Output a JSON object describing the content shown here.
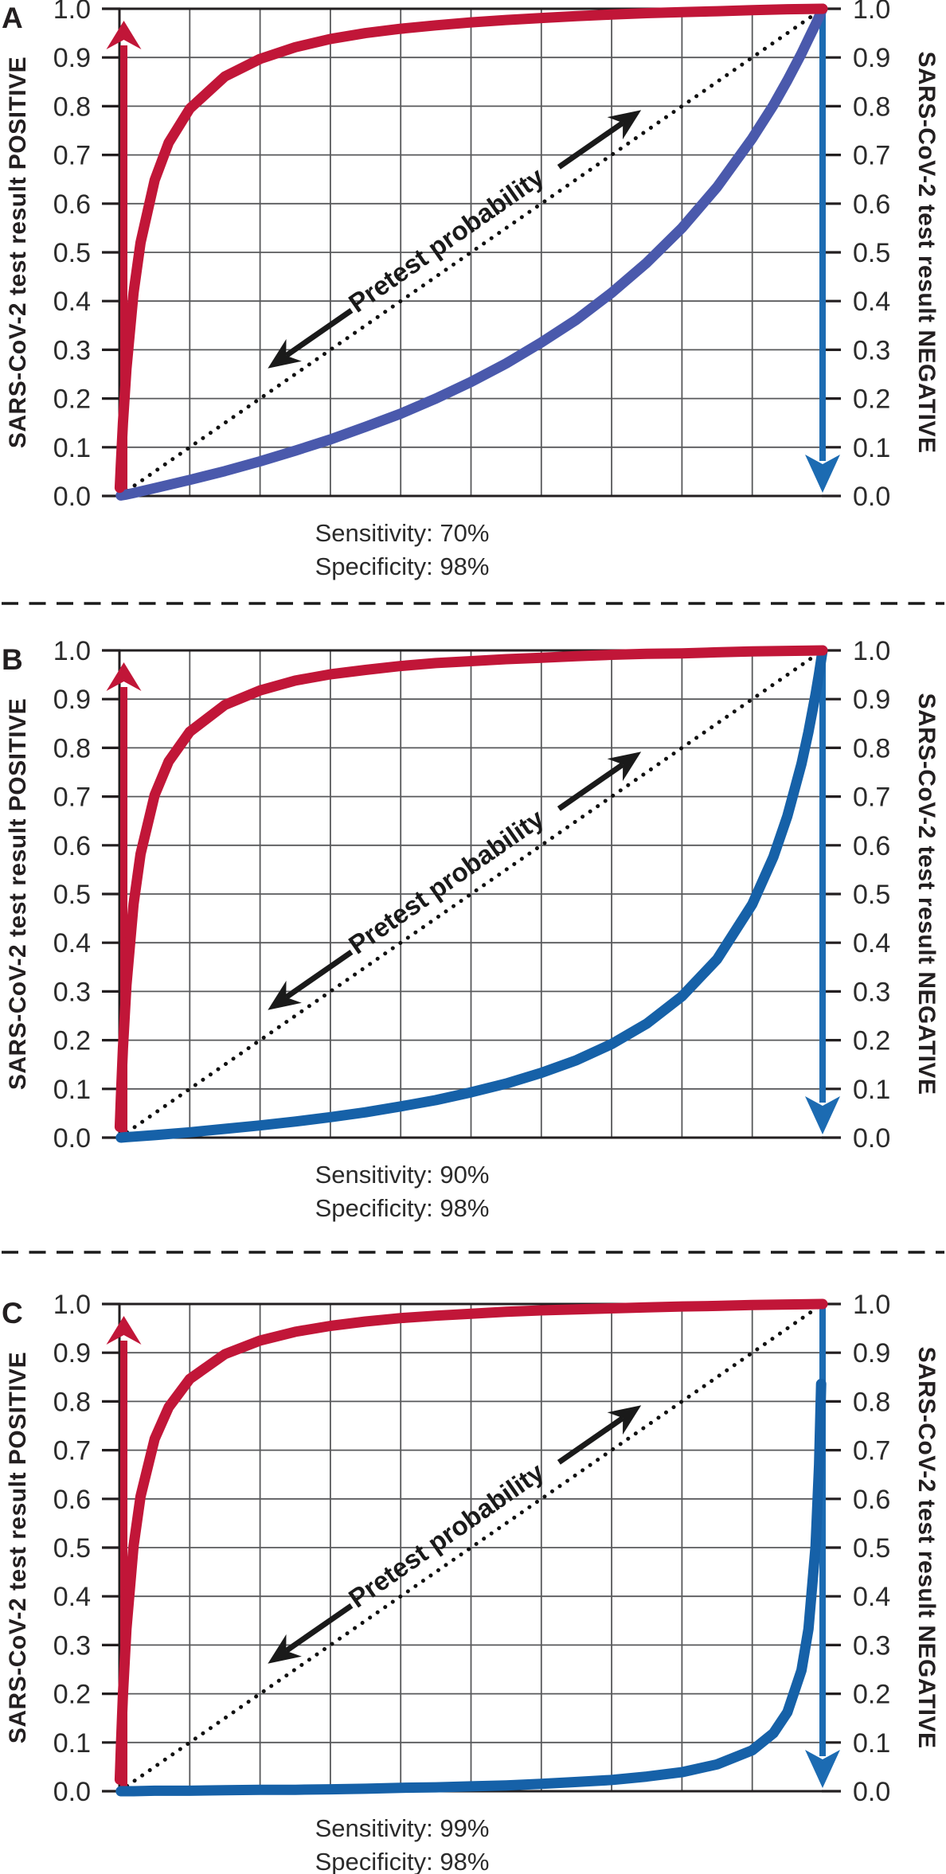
{
  "figure": {
    "background": "#ffffff",
    "tick_labels": [
      "0.0",
      "0.1",
      "0.2",
      "0.3",
      "0.4",
      "0.5",
      "0.6",
      "0.7",
      "0.8",
      "0.9",
      "1.0"
    ],
    "colors": {
      "positive_curve": "#c11638",
      "negative_curve_panel_a": "#4a59ac",
      "negative_curve": "#1661a8",
      "axis_arrow_up": "#c11638",
      "axis_arrow_down": "#1c6bb2",
      "grid": "#58595b",
      "frame": "#231f20",
      "text": "#231f20",
      "annotation": "#1a1a1a"
    }
  },
  "chart_data": [
    {
      "panel": "A",
      "type": "line",
      "ylim": [
        0,
        1
      ],
      "xlim": [
        0,
        1
      ],
      "grid": true,
      "left_axis_label": "SARS-CoV-2 test result POSITIVE",
      "right_axis_label": "SARS-CoV-2 test result NEGATIVE",
      "diagonal_label": "Pretest probability",
      "caption_lines": [
        "Sensitivity: 70%",
        "Specificity: 98%"
      ],
      "sensitivity": 0.7,
      "specificity": 0.98,
      "series": [
        {
          "id": "posttest-probability-if-test-positive",
          "color": "#c11638",
          "x": [
            0.0005,
            0.001,
            0.002,
            0.005,
            0.01,
            0.02,
            0.03,
            0.05,
            0.07,
            0.1,
            0.15,
            0.2,
            0.25,
            0.3,
            0.35,
            0.4,
            0.45,
            0.5,
            0.55,
            0.6,
            0.65,
            0.7,
            0.75,
            0.8,
            0.85,
            0.9,
            0.95,
            1.0
          ],
          "y": [
            0.017,
            0.034,
            0.066,
            0.15,
            0.261,
            0.417,
            0.52,
            0.648,
            0.725,
            0.795,
            0.861,
            0.897,
            0.921,
            0.938,
            0.95,
            0.959,
            0.966,
            0.972,
            0.977,
            0.981,
            0.985,
            0.988,
            0.991,
            0.993,
            0.995,
            0.997,
            0.999,
            1.0
          ]
        },
        {
          "id": "posttest-probability-if-test-negative",
          "color": "#4a59ac",
          "x": [
            0.002,
            0.01,
            0.02,
            0.05,
            0.1,
            0.15,
            0.2,
            0.25,
            0.3,
            0.35,
            0.4,
            0.45,
            0.5,
            0.55,
            0.6,
            0.65,
            0.7,
            0.75,
            0.8,
            0.85,
            0.9,
            0.93,
            0.95,
            0.97,
            0.98,
            0.99,
            0.995,
            1.0
          ],
          "y": [
            0.001,
            0.003,
            0.006,
            0.016,
            0.033,
            0.051,
            0.071,
            0.093,
            0.116,
            0.142,
            0.169,
            0.2,
            0.234,
            0.272,
            0.315,
            0.362,
            0.417,
            0.479,
            0.55,
            0.634,
            0.734,
            0.802,
            0.853,
            0.908,
            0.938,
            0.968,
            0.984,
            1.0
          ]
        },
        {
          "id": "pretest-probability-diagonal",
          "style": "dotted",
          "color": "#111111",
          "x": [
            0,
            1
          ],
          "y": [
            0,
            1
          ]
        }
      ]
    },
    {
      "panel": "B",
      "type": "line",
      "ylim": [
        0,
        1
      ],
      "xlim": [
        0,
        1
      ],
      "grid": true,
      "left_axis_label": "SARS-CoV-2 test result POSITIVE",
      "right_axis_label": "SARS-CoV-2 test result NEGATIVE",
      "diagonal_label": "Pretest probability",
      "caption_lines": [
        "Sensitivity: 90%",
        "Specificity: 98%"
      ],
      "sensitivity": 0.9,
      "specificity": 0.98,
      "series": [
        {
          "id": "posttest-probability-if-test-positive",
          "color": "#c11638",
          "x": [
            0.0005,
            0.001,
            0.002,
            0.005,
            0.01,
            0.02,
            0.03,
            0.05,
            0.07,
            0.1,
            0.15,
            0.2,
            0.25,
            0.3,
            0.35,
            0.4,
            0.45,
            0.5,
            0.55,
            0.6,
            0.65,
            0.7,
            0.75,
            0.8,
            0.85,
            0.9,
            0.95,
            1.0
          ],
          "y": [
            0.022,
            0.043,
            0.083,
            0.184,
            0.313,
            0.479,
            0.582,
            0.703,
            0.772,
            0.833,
            0.888,
            0.918,
            0.938,
            0.951,
            0.96,
            0.968,
            0.974,
            0.978,
            0.982,
            0.985,
            0.988,
            0.991,
            0.993,
            0.994,
            0.996,
            0.998,
            0.999,
            1.0
          ]
        },
        {
          "id": "posttest-probability-if-test-negative",
          "color": "#1661a8",
          "x": [
            0.002,
            0.01,
            0.02,
            0.05,
            0.1,
            0.15,
            0.2,
            0.25,
            0.3,
            0.35,
            0.4,
            0.45,
            0.5,
            0.55,
            0.6,
            0.65,
            0.7,
            0.75,
            0.8,
            0.85,
            0.9,
            0.93,
            0.95,
            0.97,
            0.98,
            0.99,
            0.995,
            1.0
          ],
          "y": [
            0.0,
            0.001,
            0.002,
            0.005,
            0.011,
            0.018,
            0.025,
            0.033,
            0.042,
            0.052,
            0.064,
            0.077,
            0.093,
            0.111,
            0.133,
            0.159,
            0.192,
            0.234,
            0.29,
            0.366,
            0.479,
            0.576,
            0.66,
            0.767,
            0.833,
            0.91,
            0.953,
            1.0
          ]
        },
        {
          "id": "pretest-probability-diagonal",
          "style": "dotted",
          "color": "#111111",
          "x": [
            0,
            1
          ],
          "y": [
            0,
            1
          ]
        }
      ]
    },
    {
      "panel": "C",
      "type": "line",
      "ylim": [
        0,
        1
      ],
      "xlim": [
        0,
        1
      ],
      "grid": true,
      "left_axis_label": "SARS-CoV-2 test result POSITIVE",
      "right_axis_label": "SARS-CoV-2 test result NEGATIVE",
      "diagonal_label": "Pretest probability",
      "caption_lines": [
        "Sensitivity: 99%",
        "Specificity: 98%"
      ],
      "sensitivity": 0.99,
      "specificity": 0.98,
      "series": [
        {
          "id": "posttest-probability-if-test-positive",
          "color": "#c11638",
          "x": [
            0.0005,
            0.001,
            0.002,
            0.005,
            0.01,
            0.02,
            0.03,
            0.05,
            0.07,
            0.1,
            0.15,
            0.2,
            0.25,
            0.3,
            0.35,
            0.4,
            0.45,
            0.5,
            0.55,
            0.6,
            0.65,
            0.7,
            0.75,
            0.8,
            0.85,
            0.9,
            0.95,
            1.0
          ],
          "y": [
            0.024,
            0.047,
            0.09,
            0.199,
            0.333,
            0.503,
            0.605,
            0.723,
            0.788,
            0.846,
            0.897,
            0.925,
            0.943,
            0.955,
            0.964,
            0.971,
            0.976,
            0.98,
            0.984,
            0.987,
            0.989,
            0.991,
            0.993,
            0.995,
            0.996,
            0.998,
            0.999,
            1.0
          ]
        },
        {
          "id": "posttest-probability-if-test-negative",
          "color": "#1661a8",
          "x": [
            0.002,
            0.01,
            0.02,
            0.05,
            0.1,
            0.15,
            0.2,
            0.25,
            0.3,
            0.35,
            0.4,
            0.45,
            0.5,
            0.55,
            0.6,
            0.65,
            0.7,
            0.75,
            0.8,
            0.85,
            0.9,
            0.93,
            0.95,
            0.97,
            0.98,
            0.99,
            0.995,
            0.998
          ],
          "y": [
            0.0,
            0.0,
            0.0,
            0.001,
            0.001,
            0.002,
            0.003,
            0.003,
            0.004,
            0.005,
            0.007,
            0.008,
            0.01,
            0.012,
            0.015,
            0.019,
            0.023,
            0.03,
            0.039,
            0.055,
            0.084,
            0.119,
            0.162,
            0.248,
            0.333,
            0.503,
            0.67,
            0.836
          ]
        },
        {
          "id": "pretest-probability-diagonal",
          "style": "dotted",
          "color": "#111111",
          "x": [
            0,
            1
          ],
          "y": [
            0,
            1
          ]
        }
      ]
    }
  ]
}
